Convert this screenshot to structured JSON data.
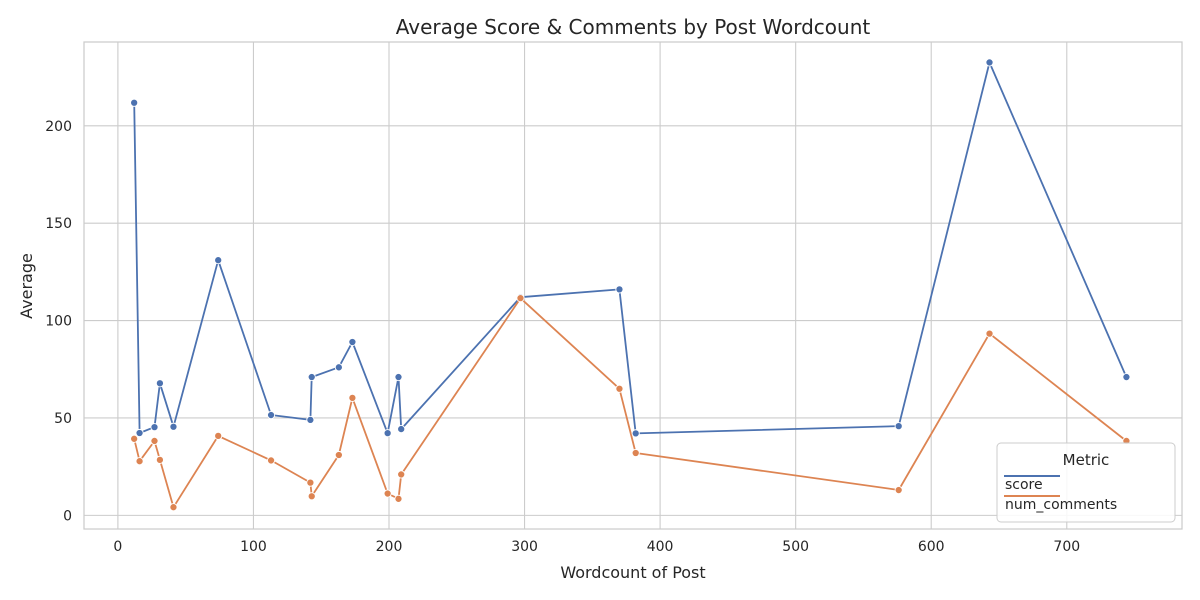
{
  "chart_data": {
    "type": "line",
    "title": "Average Score & Comments by Post Wordcount",
    "xlabel": "Wordcount of Post",
    "ylabel": "Average",
    "xlim": [
      -25,
      785
    ],
    "ylim": [
      -7,
      243
    ],
    "xticks": [
      0,
      100,
      200,
      300,
      400,
      500,
      600,
      700
    ],
    "yticks": [
      0,
      50,
      100,
      150,
      200
    ],
    "grid": true,
    "legend": {
      "title": "Metric",
      "position": "bottom-right"
    },
    "x": [
      12,
      16,
      27,
      31,
      41,
      74,
      113,
      142,
      143,
      163,
      173,
      199,
      207,
      209,
      297,
      370,
      382,
      576,
      643,
      744
    ],
    "series": [
      {
        "name": "score",
        "color": "#4c72b0",
        "values": [
          211.8,
          42.3,
          45.3,
          67.8,
          45.5,
          131,
          51.5,
          49,
          71,
          76,
          89,
          42.2,
          71,
          44.3,
          112,
          116,
          42.1,
          45.8,
          232.5,
          71
        ]
      },
      {
        "name": "num_comments",
        "color": "#dd8452",
        "values": [
          39.3,
          27.8,
          38.2,
          28.5,
          4.2,
          40.8,
          28.2,
          16.8,
          9.8,
          31,
          60.3,
          11.2,
          8.5,
          21,
          111.5,
          65,
          32,
          13,
          93.3,
          38.2
        ]
      }
    ]
  }
}
